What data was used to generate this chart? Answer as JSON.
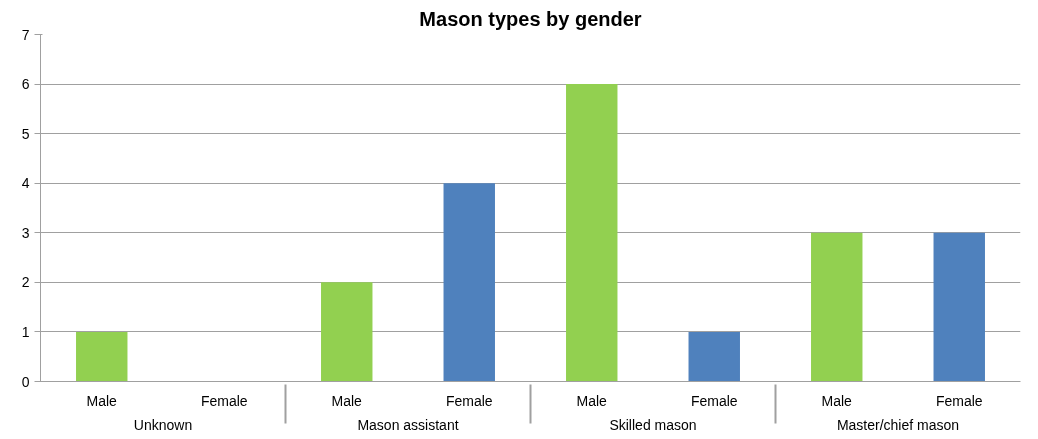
{
  "chart_data": {
    "type": "bar",
    "title": "Mason types by gender",
    "categories": [
      "Unknown",
      "Mason assistant",
      "Skilled mason",
      "Master/chief mason"
    ],
    "series": [
      {
        "name": "Male",
        "color": "#92d050",
        "values": [
          1,
          2,
          6,
          3
        ]
      },
      {
        "name": "Female",
        "color": "#4f81bd",
        "values": [
          0,
          4,
          1,
          3
        ]
      }
    ],
    "ylim": [
      0,
      7
    ],
    "yticks": [
      0,
      1,
      2,
      3,
      4,
      5,
      6,
      7
    ],
    "grid": "y"
  }
}
